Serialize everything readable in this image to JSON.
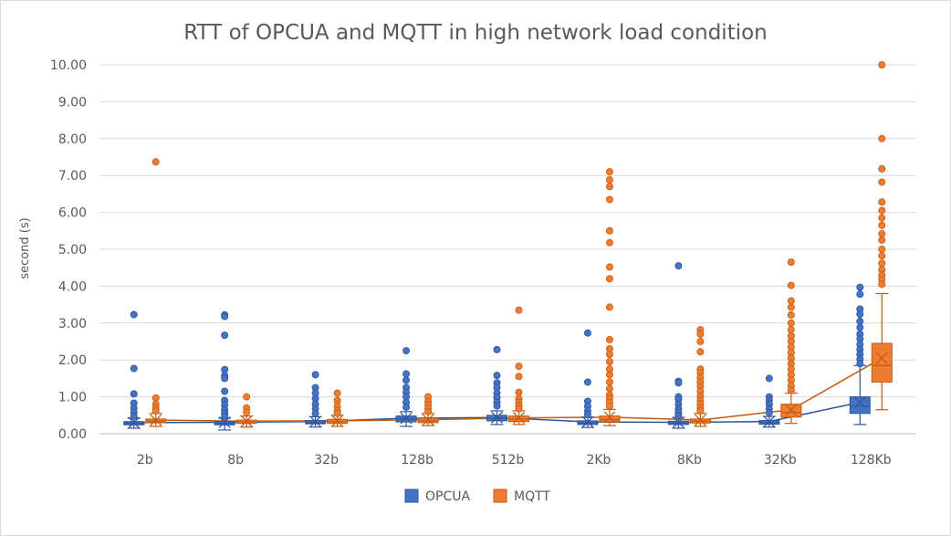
{
  "chart_data": {
    "type": "box",
    "title": "RTT of OPCUA and MQTT in high network load condition",
    "ylabel": "second (s)",
    "xlabel": "",
    "ylim": [
      0,
      10
    ],
    "yticks": [
      "0.00",
      "1.00",
      "2.00",
      "3.00",
      "4.00",
      "5.00",
      "6.00",
      "7.00",
      "8.00",
      "9.00",
      "10.00"
    ],
    "grid": true,
    "legend": "bottom",
    "categories": [
      "2b",
      "8b",
      "32b",
      "128b",
      "512b",
      "2Kb",
      "8Kb",
      "32Kb",
      "128Kb"
    ],
    "series": [
      {
        "name": "OPCUA",
        "color": "#4472C4",
        "edge": "#2F5597",
        "boxes": [
          {
            "min": 0.15,
            "q1": 0.24,
            "median": 0.28,
            "q3": 0.33,
            "max": 0.42,
            "mean": 0.3,
            "outliers": [
              3.23,
              1.77,
              1.08,
              0.83,
              0.7,
              0.58,
              0.47
            ]
          },
          {
            "min": 0.1,
            "q1": 0.24,
            "median": 0.28,
            "q3": 0.33,
            "max": 0.42,
            "mean": 0.31,
            "outliers": [
              3.22,
              3.18,
              2.67,
              1.74,
              1.58,
              1.5,
              1.15,
              0.9,
              0.78,
              0.65,
              0.55,
              0.47
            ]
          },
          {
            "min": 0.18,
            "q1": 0.27,
            "median": 0.3,
            "q3": 0.36,
            "max": 0.46,
            "mean": 0.33,
            "outliers": [
              1.6,
              1.25,
              1.1,
              0.95,
              0.8,
              0.68,
              0.55
            ]
          },
          {
            "min": 0.2,
            "q1": 0.32,
            "median": 0.4,
            "q3": 0.48,
            "max": 0.6,
            "mean": 0.42,
            "outliers": [
              2.25,
              1.62,
              1.45,
              1.25,
              1.12,
              1.0,
              0.85,
              0.72
            ]
          },
          {
            "min": 0.25,
            "q1": 0.35,
            "median": 0.42,
            "q3": 0.5,
            "max": 0.62,
            "mean": 0.44,
            "outliers": [
              2.28,
              1.58,
              1.38,
              1.25,
              1.1,
              0.98,
              0.85,
              0.75
            ]
          },
          {
            "min": 0.17,
            "q1": 0.25,
            "median": 0.29,
            "q3": 0.35,
            "max": 0.45,
            "mean": 0.32,
            "outliers": [
              2.73,
              1.4,
              0.88,
              0.75,
              0.62,
              0.52
            ]
          },
          {
            "min": 0.15,
            "q1": 0.25,
            "median": 0.29,
            "q3": 0.34,
            "max": 0.44,
            "mean": 0.31,
            "outliers": [
              4.55,
              1.42,
              1.38,
              1.0,
              0.92,
              0.8,
              0.68,
              0.57,
              0.49
            ]
          },
          {
            "min": 0.18,
            "q1": 0.26,
            "median": 0.3,
            "q3": 0.36,
            "max": 0.47,
            "mean": 0.33,
            "outliers": [
              1.5,
              1.0,
              0.9,
              0.8,
              0.68,
              0.57
            ]
          },
          {
            "min": 0.25,
            "q1": 0.55,
            "median": 0.75,
            "q3": 1.0,
            "max": 1.85,
            "mean": 0.85,
            "outliers": [
              3.97,
              3.78,
              3.38,
              3.24,
              3.05,
              2.88,
              2.7,
              2.57,
              2.42,
              2.28,
              2.15,
              2.02,
              1.9
            ]
          }
        ]
      },
      {
        "name": "MQTT",
        "color": "#ED7D31",
        "edge": "#C55A11",
        "boxes": [
          {
            "min": 0.2,
            "q1": 0.3,
            "median": 0.34,
            "q3": 0.4,
            "max": 0.55,
            "mean": 0.37,
            "outliers": [
              7.37,
              0.97,
              0.8,
              0.7,
              0.62
            ]
          },
          {
            "min": 0.18,
            "q1": 0.28,
            "median": 0.32,
            "q3": 0.37,
            "max": 0.48,
            "mean": 0.34,
            "outliers": [
              1.0,
              0.7,
              0.58
            ]
          },
          {
            "min": 0.2,
            "q1": 0.28,
            "median": 0.33,
            "q3": 0.39,
            "max": 0.5,
            "mean": 0.35,
            "outliers": [
              1.1,
              0.9,
              0.75,
              0.63,
              0.55
            ]
          },
          {
            "min": 0.22,
            "q1": 0.3,
            "median": 0.35,
            "q3": 0.42,
            "max": 0.55,
            "mean": 0.38,
            "outliers": [
              1.0,
              0.88,
              0.78,
              0.68,
              0.6
            ]
          },
          {
            "min": 0.25,
            "q1": 0.33,
            "median": 0.4,
            "q3": 0.48,
            "max": 0.62,
            "mean": 0.43,
            "outliers": [
              3.35,
              1.83,
              1.55,
              1.12,
              0.95,
              0.85,
              0.76,
              0.68
            ]
          },
          {
            "min": 0.22,
            "q1": 0.32,
            "median": 0.38,
            "q3": 0.48,
            "max": 0.66,
            "mean": 0.45,
            "outliers": [
              7.1,
              6.88,
              6.7,
              6.35,
              5.5,
              5.18,
              4.52,
              4.2,
              3.43,
              2.55,
              2.3,
              2.15,
              1.95,
              1.75,
              1.6,
              1.4,
              1.22,
              1.05,
              0.95,
              0.85,
              0.75
            ]
          },
          {
            "min": 0.2,
            "q1": 0.29,
            "median": 0.34,
            "q3": 0.4,
            "max": 0.55,
            "mean": 0.37,
            "outliers": [
              2.82,
              2.7,
              2.5,
              2.22,
              1.75,
              1.65,
              1.52,
              1.4,
              1.28,
              1.15,
              1.02,
              0.9,
              0.8,
              0.7,
              0.62
            ]
          },
          {
            "min": 0.28,
            "q1": 0.45,
            "median": 0.58,
            "q3": 0.8,
            "max": 1.1,
            "mean": 0.65,
            "outliers": [
              4.65,
              4.02,
              3.6,
              3.43,
              3.22,
              3.0,
              2.82,
              2.65,
              2.5,
              2.35,
              2.2,
              2.05,
              1.9,
              1.75,
              1.6,
              1.45,
              1.3,
              1.18
            ]
          },
          {
            "min": 0.65,
            "q1": 1.4,
            "median": 1.85,
            "q3": 2.45,
            "max": 3.8,
            "mean": 2.05,
            "outliers": [
              10.0,
              8.0,
              7.18,
              6.82,
              6.28,
              6.05,
              5.85,
              5.65,
              5.42,
              5.25,
              5.0,
              4.82,
              4.62,
              4.45,
              4.3,
              4.18,
              4.05
            ]
          }
        ]
      }
    ]
  }
}
